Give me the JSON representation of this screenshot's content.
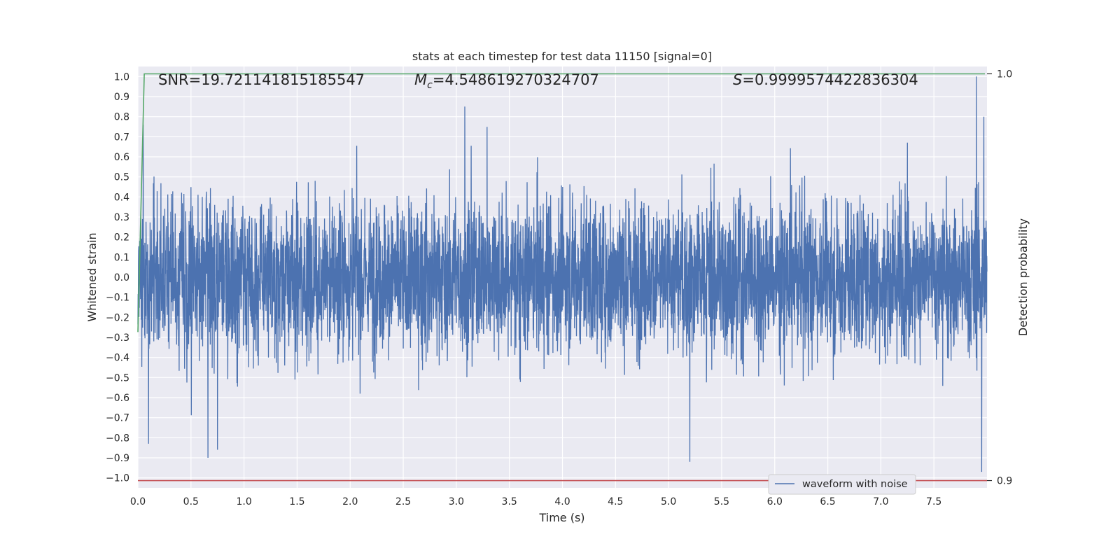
{
  "chart_data": {
    "type": "line",
    "title": "stats at each timestep for test data 11150 [signal=0]",
    "xlabel": "Time (s)",
    "ylabel": "Whitened strain",
    "y2label": "Detection probability",
    "xlim": [
      0.0,
      8.0
    ],
    "ylim": [
      -1.05,
      1.05
    ],
    "y2lim": [
      0.8982,
      1.0018
    ],
    "xticks": [
      "0.0",
      "0.5",
      "1.0",
      "1.5",
      "2.0",
      "2.5",
      "3.0",
      "3.5",
      "4.0",
      "4.5",
      "5.0",
      "5.5",
      "6.0",
      "6.5",
      "7.0",
      "7.5"
    ],
    "yticks": [
      "1.0",
      "0.9",
      "0.8",
      "0.7",
      "0.6",
      "0.5",
      "0.4",
      "0.3",
      "0.2",
      "0.1",
      "0.0",
      "-0.1",
      "-0.2",
      "-0.3",
      "-0.4",
      "-0.5",
      "-0.6",
      "-0.7",
      "-0.8",
      "-0.9",
      "-1.0"
    ],
    "y2ticks": [
      "1.0",
      "0.9"
    ],
    "grid": true,
    "legend": {
      "placement": "bottom-center",
      "entries": [
        "waveform with noise"
      ]
    },
    "annotations": {
      "snr": "SNR=19.721141815185547",
      "mc_symbol": "M",
      "mc_sub": "c",
      "mc_value": "=4.548619270324707",
      "s_symbol": "S",
      "s_value": "=0.9999574422836304"
    },
    "colors": {
      "waveform": "#4c72b0",
      "probability": "#55a868",
      "threshold": "#c44e52",
      "plot_bg": "#eaeaf2",
      "grid": "#ffffff"
    },
    "series": [
      {
        "name": "waveform with noise",
        "axis": "left",
        "description_points": {
          "x_range": [
            0.0,
            8.0
          ],
          "typical_amplitude": 0.3,
          "peaks": [
            {
              "x": 0.05,
              "y": 0.76
            },
            {
              "x": 0.1,
              "y": -0.83
            },
            {
              "x": 0.66,
              "y": -0.9
            },
            {
              "x": 0.75,
              "y": -0.86
            },
            {
              "x": 3.08,
              "y": 0.85
            },
            {
              "x": 5.2,
              "y": -0.92
            },
            {
              "x": 7.9,
              "y": 1.0
            },
            {
              "x": 7.95,
              "y": -0.97
            },
            {
              "x": 7.97,
              "y": 0.8
            }
          ]
        }
      },
      {
        "name": "",
        "axis": "right",
        "x": [
          0.0,
          0.06,
          7.98
        ],
        "y": [
          0.9365,
          1.0,
          1.0
        ]
      },
      {
        "name": "",
        "axis": "right",
        "x": [
          0.0,
          8.0
        ],
        "y": [
          0.9,
          0.9
        ]
      }
    ]
  }
}
